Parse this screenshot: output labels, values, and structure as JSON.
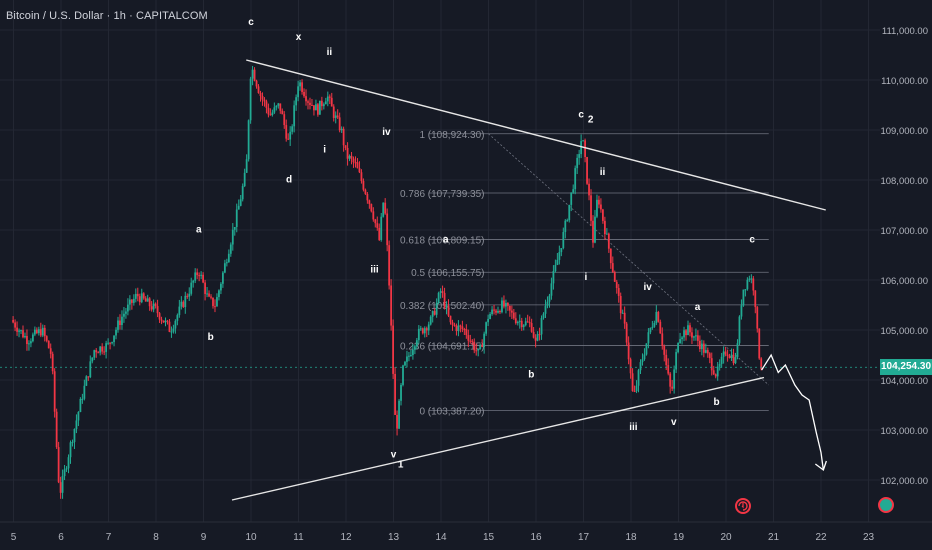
{
  "header": {
    "symbol_title": "Bitcoin / U.S. Dollar · 1h · CAPITALCOM"
  },
  "price_axis": {
    "ticks": [
      "111,000.00",
      "110,000.00",
      "109,000.00",
      "108,000.00",
      "107,000.00",
      "106,000.00",
      "105,000.00",
      "104,000.00",
      "103,000.00",
      "102,000.00"
    ],
    "tick_values": [
      111000,
      110000,
      109000,
      108000,
      107000,
      106000,
      105000,
      104000,
      103000,
      102000
    ],
    "current_price_label": "104,254.30",
    "current_price": 104254.3
  },
  "time_axis": {
    "labels": [
      "5",
      "6",
      "7",
      "8",
      "9",
      "10",
      "11",
      "12",
      "13",
      "14",
      "15",
      "16",
      "17",
      "18",
      "19",
      "20",
      "21",
      "22",
      "23"
    ]
  },
  "colors": {
    "background": "#161a25",
    "up": "#22ab94",
    "down": "#f23645",
    "grid": "#232733",
    "line": "#e6e6e6",
    "fib": "#6f7380",
    "fib_text": "#8d909a",
    "price_tag": "#22ab94"
  },
  "chart_data": {
    "type": "candlestick",
    "title": "Bitcoin / U.S. Dollar · 1h · CAPITALCOM",
    "ylim": [
      101550,
      111300
    ],
    "x_labels": [
      "5",
      "6",
      "7",
      "8",
      "9",
      "10",
      "11",
      "12",
      "13",
      "14",
      "15",
      "16",
      "17",
      "18",
      "19",
      "20",
      "21",
      "22",
      "23"
    ],
    "price_path": [
      {
        "day": 4.95,
        "price": 105200
      },
      {
        "day": 5.3,
        "price": 104800
      },
      {
        "day": 5.6,
        "price": 105000
      },
      {
        "day": 5.8,
        "price": 104500
      },
      {
        "day": 5.9,
        "price": 102800
      },
      {
        "day": 5.97,
        "price": 101700
      },
      {
        "day": 6.2,
        "price": 102700
      },
      {
        "day": 6.45,
        "price": 103700
      },
      {
        "day": 6.7,
        "price": 104600
      },
      {
        "day": 7.0,
        "price": 104700
      },
      {
        "day": 7.3,
        "price": 105300
      },
      {
        "day": 7.6,
        "price": 105700
      },
      {
        "day": 8.0,
        "price": 105400
      },
      {
        "day": 8.3,
        "price": 105000
      },
      {
        "day": 8.7,
        "price": 105800
      },
      {
        "day": 8.9,
        "price": 106200
      },
      {
        "day": 9.1,
        "price": 105600
      },
      {
        "day": 9.25,
        "price": 105500
      },
      {
        "day": 9.5,
        "price": 106500
      },
      {
        "day": 9.75,
        "price": 107500
      },
      {
        "day": 9.9,
        "price": 108200
      },
      {
        "day": 10.0,
        "price": 110300
      },
      {
        "day": 10.2,
        "price": 109700
      },
      {
        "day": 10.4,
        "price": 109300
      },
      {
        "day": 10.6,
        "price": 109500
      },
      {
        "day": 10.8,
        "price": 108700
      },
      {
        "day": 11.0,
        "price": 110000
      },
      {
        "day": 11.2,
        "price": 109600
      },
      {
        "day": 11.4,
        "price": 109400
      },
      {
        "day": 11.6,
        "price": 109700
      },
      {
        "day": 11.75,
        "price": 109300
      },
      {
        "day": 11.9,
        "price": 109000
      },
      {
        "day": 12.0,
        "price": 108500
      },
      {
        "day": 12.2,
        "price": 108300
      },
      {
        "day": 12.4,
        "price": 107800
      },
      {
        "day": 12.55,
        "price": 107400
      },
      {
        "day": 12.7,
        "price": 106800
      },
      {
        "day": 12.8,
        "price": 107700
      },
      {
        "day": 12.9,
        "price": 106100
      },
      {
        "day": 13.05,
        "price": 102900
      },
      {
        "day": 13.2,
        "price": 104200
      },
      {
        "day": 13.5,
        "price": 104900
      },
      {
        "day": 13.8,
        "price": 105200
      },
      {
        "day": 14.0,
        "price": 105800
      },
      {
        "day": 14.2,
        "price": 105100
      },
      {
        "day": 14.5,
        "price": 105000
      },
      {
        "day": 14.8,
        "price": 104500
      },
      {
        "day": 15.0,
        "price": 105300
      },
      {
        "day": 15.3,
        "price": 105500
      },
      {
        "day": 15.6,
        "price": 105200
      },
      {
        "day": 15.9,
        "price": 105100
      },
      {
        "day": 16.0,
        "price": 104700
      },
      {
        "day": 16.2,
        "price": 105500
      },
      {
        "day": 16.4,
        "price": 106200
      },
      {
        "day": 16.6,
        "price": 107000
      },
      {
        "day": 16.8,
        "price": 108000
      },
      {
        "day": 16.97,
        "price": 108900
      },
      {
        "day": 17.1,
        "price": 107800
      },
      {
        "day": 17.2,
        "price": 106800
      },
      {
        "day": 17.3,
        "price": 107700
      },
      {
        "day": 17.5,
        "price": 106800
      },
      {
        "day": 17.7,
        "price": 105800
      },
      {
        "day": 17.9,
        "price": 104900
      },
      {
        "day": 18.05,
        "price": 103600
      },
      {
        "day": 18.2,
        "price": 104300
      },
      {
        "day": 18.4,
        "price": 105000
      },
      {
        "day": 18.55,
        "price": 105400
      },
      {
        "day": 18.7,
        "price": 104500
      },
      {
        "day": 18.85,
        "price": 103700
      },
      {
        "day": 19.0,
        "price": 104900
      },
      {
        "day": 19.2,
        "price": 105000
      },
      {
        "day": 19.4,
        "price": 104800
      },
      {
        "day": 19.6,
        "price": 104500
      },
      {
        "day": 19.8,
        "price": 104100
      },
      {
        "day": 20.0,
        "price": 104600
      },
      {
        "day": 20.2,
        "price": 104400
      },
      {
        "day": 20.35,
        "price": 105800
      },
      {
        "day": 20.5,
        "price": 106100
      },
      {
        "day": 20.6,
        "price": 105800
      },
      {
        "day": 20.68,
        "price": 104600
      },
      {
        "day": 20.75,
        "price": 104254.3
      }
    ],
    "fibonacci_levels": [
      {
        "label": "1 (108,924.30)",
        "value": 108924.3
      },
      {
        "label": "0.786 (107,739.35)",
        "value": 107739.35
      },
      {
        "label": "0.618 (106,809.15)",
        "value": 106809.15
      },
      {
        "label": "0.5 (106,155.75)",
        "value": 106155.75
      },
      {
        "label": "0.382 (105,502.40)",
        "value": 105502.4
      },
      {
        "label": "0.236 (104,691.15)",
        "value": 104691.15
      },
      {
        "label": "0 (103,387.20)",
        "value": 103387.2
      }
    ],
    "trendlines": [
      {
        "name": "upper",
        "from": {
          "day": 9.9,
          "price": 110400
        },
        "to": {
          "day": 22.1,
          "price": 107400
        }
      },
      {
        "name": "lower",
        "from": {
          "day": 9.6,
          "price": 101600
        },
        "to": {
          "day": 20.8,
          "price": 104050
        }
      }
    ],
    "wave_labels": [
      {
        "text": "c",
        "day": 10.0,
        "price": 111100
      },
      {
        "text": "x",
        "day": 11.0,
        "price": 110800
      },
      {
        "text": "ii",
        "day": 11.65,
        "price": 110500
      },
      {
        "text": "d",
        "day": 10.8,
        "price": 107950
      },
      {
        "text": "i",
        "day": 11.55,
        "price": 108550
      },
      {
        "text": "iv",
        "day": 12.85,
        "price": 108900
      },
      {
        "text": "a",
        "day": 8.9,
        "price": 106950
      },
      {
        "text": "b",
        "day": 9.15,
        "price": 104800
      },
      {
        "text": "iii",
        "day": 12.6,
        "price": 106150
      },
      {
        "text": "v",
        "day": 13.0,
        "price": 102450
      },
      {
        "text": "1",
        "day": 13.15,
        "price": 102250
      },
      {
        "text": "a",
        "day": 14.1,
        "price": 106750
      },
      {
        "text": "b",
        "day": 15.9,
        "price": 104050
      },
      {
        "text": "c",
        "day": 16.95,
        "price": 109250
      },
      {
        "text": "2",
        "day": 17.15,
        "price": 109150
      },
      {
        "text": "ii",
        "day": 17.4,
        "price": 108100
      },
      {
        "text": "i",
        "day": 17.05,
        "price": 106000
      },
      {
        "text": "iv",
        "day": 18.35,
        "price": 105800
      },
      {
        "text": "a",
        "day": 19.4,
        "price": 105400
      },
      {
        "text": "iii",
        "day": 18.05,
        "price": 103000
      },
      {
        "text": "v",
        "day": 18.9,
        "price": 103100
      },
      {
        "text": "b",
        "day": 19.8,
        "price": 103500
      },
      {
        "text": "c",
        "day": 20.55,
        "price": 106750
      }
    ],
    "projection": [
      {
        "day": 20.75,
        "price": 104200
      },
      {
        "day": 20.95,
        "price": 104500
      },
      {
        "day": 21.1,
        "price": 104150
      },
      {
        "day": 21.25,
        "price": 104300
      },
      {
        "day": 21.45,
        "price": 103900
      },
      {
        "day": 21.6,
        "price": 103700
      },
      {
        "day": 21.75,
        "price": 103600
      },
      {
        "day": 21.9,
        "price": 102950
      },
      {
        "day": 22.0,
        "price": 102550
      },
      {
        "day": 22.05,
        "price": 102200
      }
    ]
  }
}
